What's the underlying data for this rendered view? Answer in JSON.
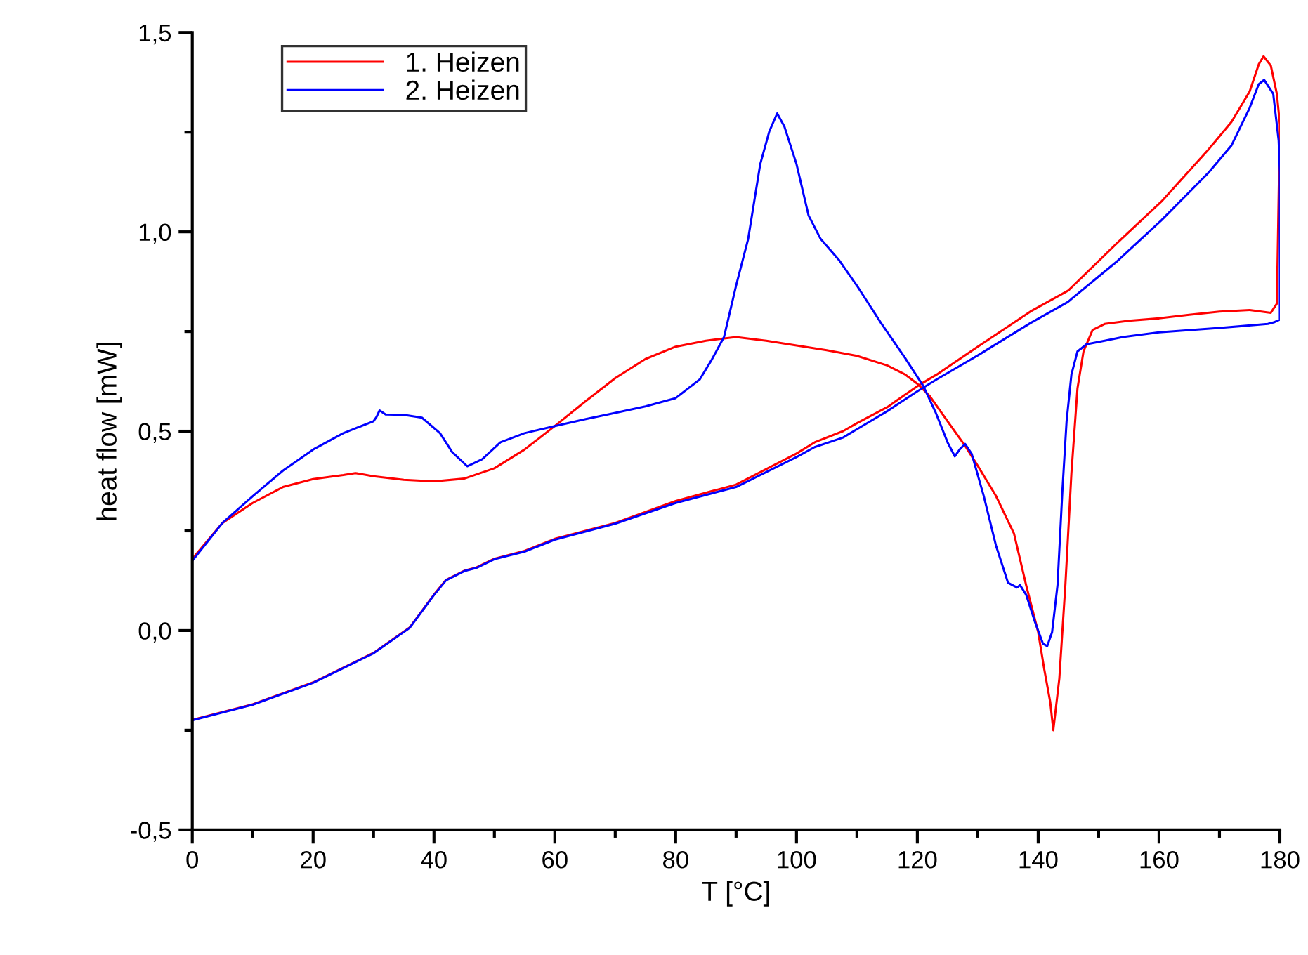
{
  "chart_data": {
    "type": "line",
    "xlabel": "T [°C]",
    "ylabel": "heat flow [mW]",
    "xlim": [
      0,
      180
    ],
    "xticks": [
      0,
      20,
      40,
      60,
      80,
      100,
      120,
      140,
      160,
      180
    ],
    "ylim": [
      -0.5,
      1.5
    ],
    "yticks": [
      {
        "value": -0.5,
        "label": "-0,5"
      },
      {
        "value": 0,
        "label": "0,0"
      },
      {
        "value": 0.5,
        "label": "0,5"
      },
      {
        "value": 1.0,
        "label": "1,0"
      },
      {
        "value": 1.5,
        "label": "1,5"
      }
    ],
    "grid": false,
    "legend": "top left",
    "marker": "none",
    "line_style": "solid",
    "series": [
      {
        "name": "1. Heizen",
        "color": "#ff0000",
        "x": [
          0,
          5,
          10,
          15,
          20,
          25,
          27,
          30,
          35,
          40,
          45,
          50,
          55,
          60,
          65,
          70,
          75,
          80,
          85,
          90,
          95,
          100,
          105,
          110,
          115,
          118,
          120,
          122,
          125,
          128,
          130,
          133,
          136,
          138,
          140,
          141,
          142,
          142.5,
          143.5,
          144.5,
          145.5,
          146.5,
          147.5,
          149,
          151,
          155,
          160,
          165,
          170,
          175,
          178.5,
          179.5,
          180,
          179.5,
          178.5,
          177.3,
          176.5,
          175,
          172,
          168.1,
          160.4,
          153,
          145,
          138.7,
          130,
          123.2,
          120,
          115,
          110,
          107.7,
          103,
          100,
          90,
          80,
          70,
          60,
          55,
          50,
          47,
          45,
          42,
          40,
          36,
          30,
          20,
          10,
          0
        ],
        "values": [
          0.18,
          0.27,
          0.32,
          0.36,
          0.38,
          0.39,
          0.395,
          0.387,
          0.378,
          0.374,
          0.381,
          0.407,
          0.454,
          0.513,
          0.574,
          0.633,
          0.681,
          0.712,
          0.727,
          0.736,
          0.727,
          0.715,
          0.703,
          0.689,
          0.665,
          0.642,
          0.619,
          0.589,
          0.525,
          0.461,
          0.413,
          0.338,
          0.243,
          0.114,
          -0.004,
          -0.097,
          -0.18,
          -0.25,
          -0.12,
          0.114,
          0.395,
          0.607,
          0.7,
          0.754,
          0.769,
          0.777,
          0.783,
          0.792,
          0.8,
          0.804,
          0.797,
          0.82,
          1.27,
          1.346,
          1.417,
          1.44,
          1.42,
          1.352,
          1.276,
          1.205,
          1.076,
          0.971,
          0.853,
          0.8,
          0.712,
          0.642,
          0.613,
          0.56,
          0.52,
          0.5,
          0.472,
          0.444,
          0.366,
          0.325,
          0.27,
          0.23,
          0.2,
          0.18,
          0.158,
          0.15,
          0.127,
          0.09,
          0.008,
          -0.056,
          -0.13,
          -0.185,
          -0.224
        ]
      },
      {
        "name": "2. Heizen",
        "color": "#0000ff",
        "x": [
          0,
          5,
          10,
          15,
          20,
          25,
          30,
          30.5,
          31,
          32,
          35,
          38,
          41,
          43,
          45.5,
          48,
          51,
          55,
          60,
          65,
          70,
          75,
          80,
          84,
          86,
          88,
          90,
          92,
          94,
          95.5,
          96.8,
          98,
          100,
          102,
          104,
          107,
          110,
          114,
          118,
          121,
          123,
          125,
          126.2,
          127,
          127.9,
          129,
          131,
          133,
          135,
          136.5,
          137,
          138,
          139.5,
          140.8,
          141.5,
          142.3,
          143.2,
          144,
          144.7,
          145.5,
          146.5,
          148,
          151,
          154,
          160,
          170,
          178,
          179,
          180,
          180,
          179.8,
          178.9,
          177.4,
          176.5,
          175,
          172,
          168.1,
          160.4,
          152.9,
          144.9,
          138.7,
          130,
          123.2,
          120,
          115,
          110,
          107.7,
          103,
          100,
          90,
          80,
          70,
          60,
          55,
          50,
          47,
          45,
          42,
          40,
          36,
          30,
          20,
          10,
          0
        ],
        "values": [
          0.175,
          0.27,
          0.337,
          0.401,
          0.454,
          0.495,
          0.525,
          0.536,
          0.552,
          0.542,
          0.541,
          0.534,
          0.495,
          0.448,
          0.412,
          0.43,
          0.472,
          0.495,
          0.513,
          0.53,
          0.546,
          0.562,
          0.583,
          0.63,
          0.68,
          0.736,
          0.865,
          0.982,
          1.17,
          1.252,
          1.297,
          1.264,
          1.17,
          1.041,
          0.982,
          0.93,
          0.865,
          0.771,
          0.683,
          0.613,
          0.548,
          0.472,
          0.437,
          0.454,
          0.468,
          0.443,
          0.337,
          0.214,
          0.12,
          0.108,
          0.114,
          0.09,
          0.02,
          -0.033,
          -0.039,
          -0.004,
          0.114,
          0.349,
          0.525,
          0.642,
          0.7,
          0.718,
          0.727,
          0.736,
          0.748,
          0.759,
          0.769,
          0.773,
          0.78,
          1.15,
          1.229,
          1.346,
          1.381,
          1.37,
          1.311,
          1.217,
          1.147,
          1.029,
          0.924,
          0.824,
          0.771,
          0.69,
          0.63,
          0.6,
          0.55,
          0.505,
          0.484,
          0.46,
          0.435,
          0.36,
          0.32,
          0.268,
          0.228,
          0.198,
          0.179,
          0.157,
          0.149,
          0.126,
          0.089,
          0.007,
          -0.057,
          -0.131,
          -0.186,
          -0.225
        ]
      }
    ]
  }
}
